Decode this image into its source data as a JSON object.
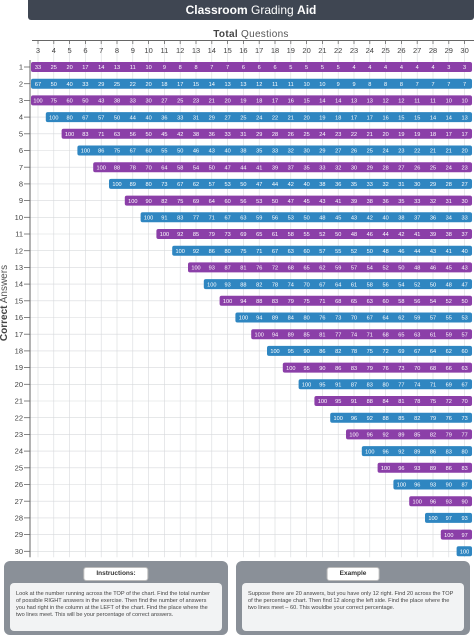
{
  "header": {
    "title_bold": "Classroom",
    "title_rest": "Grading",
    "title_end": "Aid"
  },
  "axes": {
    "top_bold": "Total",
    "top_rest": "Questions",
    "left_bold": "Correct",
    "left_rest": "Answers"
  },
  "instructions": {
    "title": "Instructions:",
    "text": "Look at the number running across the TOP of the chart. Find the total number of possible RIGHT answers in the exercise. Then find the number of answers you had right in the column at the LEFT of the chart. Find the place where the two lines meet. This will be your percentage of correct answers."
  },
  "example": {
    "title": "Example",
    "text": "Suppose there are 20 answers, but you have only 12 right. Find 20 across the TOP of the percentage chart. Then find 12 along the left side. Find the place where the two lines meet – 60. This wouldbe your correct percentage."
  },
  "colors": {
    "purple": "#8b3fa8",
    "blue": "#2f86c1",
    "header": "#3f4652"
  },
  "chart_data": {
    "type": "table",
    "x_label": "Total Questions",
    "y_label": "Correct Answers",
    "totals": [
      3,
      4,
      5,
      6,
      7,
      8,
      9,
      10,
      11,
      12,
      13,
      14,
      15,
      16,
      17,
      18,
      19,
      20,
      21,
      22,
      23,
      24,
      25,
      26,
      27,
      28,
      29,
      30
    ],
    "correct": [
      1,
      2,
      3,
      4,
      5,
      6,
      7,
      8,
      9,
      10,
      11,
      12,
      13,
      14,
      15,
      16,
      17,
      18,
      19,
      20,
      21,
      22,
      23,
      24,
      25,
      26,
      27,
      28,
      29,
      30
    ],
    "rows": [
      [
        33,
        25,
        20,
        17,
        14,
        13,
        11,
        10,
        9,
        8,
        8,
        7,
        7,
        6,
        6,
        6,
        5,
        5,
        5,
        5,
        4,
        4,
        4,
        4,
        4,
        4,
        3,
        3
      ],
      [
        67,
        50,
        40,
        33,
        29,
        25,
        22,
        20,
        18,
        17,
        15,
        14,
        13,
        13,
        12,
        11,
        11,
        10,
        10,
        9,
        9,
        8,
        8,
        8,
        7,
        7,
        7,
        7
      ],
      [
        100,
        75,
        60,
        50,
        43,
        38,
        33,
        30,
        27,
        25,
        23,
        21,
        20,
        19,
        18,
        17,
        16,
        15,
        14,
        14,
        13,
        13,
        12,
        12,
        11,
        11,
        10,
        10
      ],
      [
        100,
        80,
        67,
        57,
        50,
        44,
        40,
        36,
        33,
        31,
        29,
        27,
        25,
        24,
        22,
        21,
        20,
        19,
        18,
        17,
        17,
        16,
        15,
        15,
        14,
        14,
        13
      ],
      [
        100,
        83,
        71,
        63,
        56,
        50,
        45,
        42,
        38,
        36,
        33,
        31,
        29,
        28,
        26,
        25,
        24,
        23,
        22,
        21,
        20,
        19,
        19,
        18,
        17,
        17
      ],
      [
        100,
        86,
        75,
        67,
        60,
        55,
        50,
        46,
        43,
        40,
        38,
        35,
        33,
        32,
        30,
        29,
        27,
        26,
        25,
        24,
        23,
        22,
        21,
        21,
        20
      ],
      [
        100,
        88,
        78,
        70,
        64,
        58,
        54,
        50,
        47,
        44,
        41,
        39,
        37,
        35,
        33,
        32,
        30,
        29,
        28,
        27,
        26,
        25,
        24,
        23
      ],
      [
        100,
        89,
        80,
        73,
        67,
        62,
        57,
        53,
        50,
        47,
        44,
        42,
        40,
        38,
        36,
        35,
        33,
        32,
        31,
        30,
        29,
        28,
        27
      ],
      [
        100,
        90,
        82,
        75,
        69,
        64,
        60,
        56,
        53,
        50,
        47,
        45,
        43,
        41,
        39,
        38,
        36,
        35,
        33,
        32,
        31,
        30
      ],
      [
        100,
        91,
        83,
        77,
        71,
        67,
        63,
        59,
        56,
        53,
        50,
        48,
        45,
        43,
        42,
        40,
        38,
        37,
        36,
        34,
        33
      ],
      [
        100,
        92,
        85,
        79,
        73,
        69,
        65,
        61,
        58,
        55,
        52,
        50,
        48,
        46,
        44,
        42,
        41,
        39,
        38,
        37
      ],
      [
        100,
        92,
        86,
        80,
        75,
        71,
        67,
        63,
        60,
        57,
        55,
        52,
        50,
        48,
        46,
        44,
        43,
        41,
        40
      ],
      [
        100,
        93,
        87,
        81,
        76,
        72,
        68,
        65,
        62,
        59,
        57,
        54,
        52,
        50,
        48,
        46,
        45,
        43
      ],
      [
        100,
        93,
        88,
        82,
        78,
        74,
        70,
        67,
        64,
        61,
        58,
        56,
        54,
        52,
        50,
        48,
        47
      ],
      [
        100,
        94,
        88,
        83,
        79,
        75,
        71,
        68,
        65,
        63,
        60,
        58,
        56,
        54,
        52,
        50
      ],
      [
        100,
        94,
        89,
        84,
        80,
        76,
        73,
        70,
        67,
        64,
        62,
        59,
        57,
        55,
        53
      ],
      [
        100,
        94,
        89,
        85,
        81,
        77,
        74,
        71,
        68,
        65,
        63,
        61,
        59,
        57
      ],
      [
        100,
        95,
        90,
        86,
        82,
        78,
        75,
        72,
        69,
        67,
        64,
        62,
        60
      ],
      [
        100,
        95,
        90,
        86,
        83,
        79,
        76,
        73,
        70,
        68,
        66,
        63
      ],
      [
        100,
        95,
        91,
        87,
        83,
        80,
        77,
        74,
        71,
        69,
        67
      ],
      [
        100,
        95,
        91,
        88,
        84,
        81,
        78,
        75,
        72,
        70
      ],
      [
        100,
        96,
        92,
        88,
        85,
        82,
        79,
        76,
        73
      ],
      [
        100,
        96,
        92,
        89,
        85,
        82,
        79,
        77
      ],
      [
        100,
        96,
        92,
        89,
        86,
        83,
        80
      ],
      [
        100,
        96,
        93,
        89,
        86,
        83
      ],
      [
        100,
        96,
        93,
        90,
        87
      ],
      [
        100,
        96,
        93,
        90
      ],
      [
        100,
        97,
        93
      ],
      [
        100,
        97
      ],
      [
        100
      ]
    ]
  }
}
